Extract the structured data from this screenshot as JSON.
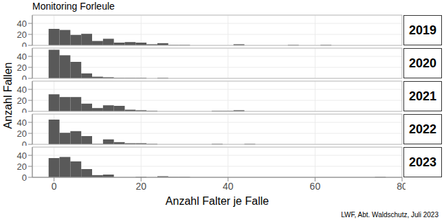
{
  "chart_data": {
    "type": "histogram",
    "title": "Monitoring Forleule",
    "x_label": "Anzahl Falter je Falle",
    "y_label": "Anzahl Fallen",
    "caption": "LWF, Abt. Waldschutz, Juli 2023",
    "bins": [
      -1.25,
      1.25,
      3.75,
      6.25,
      8.75,
      11.25,
      13.75,
      16.25,
      18.75,
      21.25,
      23.75,
      26.25,
      28.75,
      31.25,
      33.75,
      36.25,
      38.75,
      41.25,
      43.75,
      46.25,
      48.75,
      51.25,
      53.75,
      56.25,
      58.75,
      61.25,
      63.75,
      66.25,
      68.75,
      71.25,
      73.75,
      76.25,
      78.75
    ],
    "series": [
      {
        "name": "2019",
        "color": "#595959",
        "values": [
          30,
          28,
          19,
          21,
          8,
          12,
          5,
          6,
          5,
          2,
          4,
          1,
          1,
          0,
          0,
          0,
          0,
          2,
          0,
          0,
          0,
          0,
          1,
          0,
          0,
          1,
          0,
          0,
          0,
          0,
          0,
          0
        ]
      },
      {
        "name": "2020",
        "color": "#595959",
        "values": [
          52,
          42,
          30,
          9,
          3,
          2,
          1,
          1,
          1,
          0,
          1,
          0,
          0,
          0,
          0,
          0,
          0,
          0,
          0,
          0,
          0,
          0,
          0,
          0,
          0,
          0,
          0,
          0,
          0,
          0,
          0,
          0
        ]
      },
      {
        "name": "2021",
        "color": "#595959",
        "values": [
          31,
          26,
          26,
          14,
          6,
          11,
          10,
          3,
          2,
          1,
          0,
          0,
          0,
          0,
          0,
          1,
          1,
          2,
          0,
          0,
          0,
          0,
          0,
          0,
          0,
          0,
          0,
          0,
          0,
          0,
          0,
          0
        ]
      },
      {
        "name": "2022",
        "color": "#595959",
        "values": [
          45,
          21,
          24,
          15,
          1,
          9,
          4,
          2,
          2,
          1,
          0,
          0,
          0,
          0,
          0,
          1,
          0,
          0,
          1,
          0,
          0,
          0,
          0,
          0,
          0,
          0,
          0,
          0,
          0,
          0,
          0,
          0
        ]
      },
      {
        "name": "2023",
        "color": "#595959",
        "values": [
          35,
          37,
          29,
          15,
          4,
          5,
          0,
          0,
          1,
          0,
          2,
          1,
          1,
          0,
          0,
          0,
          0,
          0,
          0,
          0,
          0,
          0,
          0,
          0,
          0,
          0,
          0,
          0,
          0,
          0,
          1,
          0
        ]
      }
    ],
    "xlim": [
      -5,
      80
    ],
    "xticks": [
      0,
      20,
      40,
      60,
      80
    ],
    "ylim": [
      0,
      55
    ],
    "yticks": [
      0,
      20,
      40
    ],
    "grid": true
  }
}
